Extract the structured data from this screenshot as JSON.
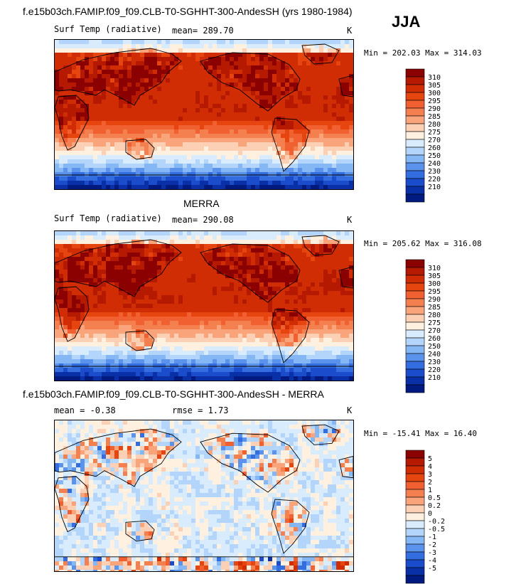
{
  "season": "JJA",
  "panels": [
    {
      "title": "f.e15b03ch.FAMIP.f09_f09.CLB-T0-SGHHT-300-AndesSH (yrs 1980-1984)",
      "variable": "Surf Temp (radiative)",
      "stat1": "mean= 289.70",
      "stat2": "",
      "units": "K",
      "minmax": "Min = 202.03 Max = 314.03",
      "kind": "abs",
      "colorbar": {
        "labels": [
          "310",
          "305",
          "300",
          "295",
          "290",
          "285",
          "280",
          "275",
          "270",
          "260",
          "250",
          "240",
          "230",
          "220",
          "210"
        ],
        "colors": [
          "#8b0000",
          "#b51a00",
          "#d02d05",
          "#e6450f",
          "#f06030",
          "#f5804f",
          "#f9a47a",
          "#fcd0b4",
          "#fff0e0",
          "#d9ecfd",
          "#b3d5fb",
          "#86b7f5",
          "#5b93ec",
          "#336de0",
          "#1a4ccc",
          "#0a30a8",
          "#001a80"
        ]
      }
    },
    {
      "title": "MERRA",
      "variable": "Surf Temp (radiative)",
      "stat1": "mean= 290.08",
      "stat2": "",
      "units": "K",
      "minmax": "Min = 205.62 Max = 316.08",
      "kind": "abs",
      "colorbar": {
        "labels": [
          "310",
          "305",
          "300",
          "295",
          "290",
          "285",
          "280",
          "275",
          "270",
          "260",
          "250",
          "240",
          "230",
          "220",
          "210"
        ],
        "colors": [
          "#8b0000",
          "#b51a00",
          "#d02d05",
          "#e6450f",
          "#f06030",
          "#f5804f",
          "#f9a47a",
          "#fcd0b4",
          "#fff0e0",
          "#d9ecfd",
          "#b3d5fb",
          "#86b7f5",
          "#5b93ec",
          "#336de0",
          "#1a4ccc",
          "#0a30a8",
          "#001a80"
        ]
      }
    },
    {
      "title": "f.e15b03ch.FAMIP.f09_f09.CLB-T0-SGHHT-300-AndesSH - MERRA",
      "variable": "",
      "stat1": "mean =  -0.38",
      "stat2": "rmse =   1.73",
      "units": "K",
      "minmax": "Min = -15.41 Max =  16.40",
      "kind": "diff",
      "colorbar": {
        "labels": [
          "5",
          "4",
          "3",
          "2",
          "1",
          "0.5",
          "0.2",
          "0",
          "-0.2",
          "-0.5",
          "-1",
          "-2",
          "-3",
          "-4",
          "-5"
        ],
        "colors": [
          "#8b0000",
          "#b51a00",
          "#d02d05",
          "#e6450f",
          "#f06030",
          "#f5804f",
          "#f9a47a",
          "#fcd0b4",
          "#fff0e0",
          "#d9ecfd",
          "#b3d5fb",
          "#86b7f5",
          "#5b93ec",
          "#336de0",
          "#1a4ccc",
          "#0a30a8",
          "#001a80"
        ]
      }
    }
  ],
  "chart_data": [
    {
      "type": "heatmap",
      "title": "f.e15b03ch.FAMIP.f09_f09.CLB-T0-SGHHT-300-AndesSH (yrs 1980-1984)",
      "variable": "Surf Temp (radiative)",
      "mean": 289.7,
      "min": 202.03,
      "max": 314.03,
      "units": "K",
      "contour_levels": [
        210,
        220,
        230,
        240,
        250,
        260,
        270,
        275,
        280,
        285,
        290,
        295,
        300,
        305,
        310
      ]
    },
    {
      "type": "heatmap",
      "title": "MERRA",
      "variable": "Surf Temp (radiative)",
      "mean": 290.08,
      "min": 205.62,
      "max": 316.08,
      "units": "K",
      "contour_levels": [
        210,
        220,
        230,
        240,
        250,
        260,
        270,
        275,
        280,
        285,
        290,
        295,
        300,
        305,
        310
      ]
    },
    {
      "type": "heatmap",
      "title": "f.e15b03ch.FAMIP.f09_f09.CLB-T0-SGHHT-300-AndesSH - MERRA",
      "mean": -0.38,
      "rmse": 1.73,
      "min": -15.41,
      "max": 16.4,
      "units": "K",
      "contour_levels": [
        -5,
        -4,
        -3,
        -2,
        -1,
        -0.5,
        -0.2,
        0,
        0.2,
        0.5,
        1,
        2,
        3,
        4,
        5
      ]
    }
  ]
}
